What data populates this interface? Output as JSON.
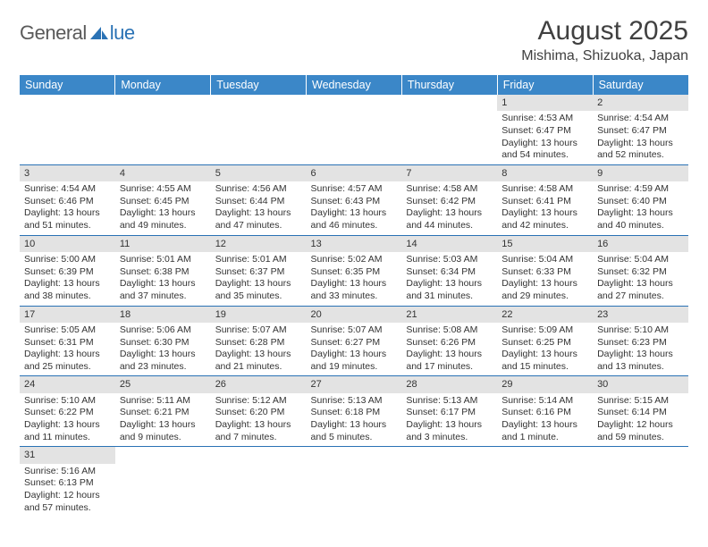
{
  "logo": {
    "text1": "General",
    "text2": "lue",
    "sail_color": "#2a72b5",
    "text1_color": "#5a5a5a"
  },
  "title": "August 2025",
  "subtitle": "Mishima, Shizuoka, Japan",
  "header_bg": "#3b87c8",
  "header_fg": "#ffffff",
  "daynum_bg": "#e3e3e3",
  "divider_color": "#2a72b5",
  "weekdays": [
    "Sunday",
    "Monday",
    "Tuesday",
    "Wednesday",
    "Thursday",
    "Friday",
    "Saturday"
  ],
  "weeks": [
    [
      null,
      null,
      null,
      null,
      null,
      {
        "n": "1",
        "sr": "Sunrise: 4:53 AM",
        "ss": "Sunset: 6:47 PM",
        "dl": "Daylight: 13 hours and 54 minutes."
      },
      {
        "n": "2",
        "sr": "Sunrise: 4:54 AM",
        "ss": "Sunset: 6:47 PM",
        "dl": "Daylight: 13 hours and 52 minutes."
      }
    ],
    [
      {
        "n": "3",
        "sr": "Sunrise: 4:54 AM",
        "ss": "Sunset: 6:46 PM",
        "dl": "Daylight: 13 hours and 51 minutes."
      },
      {
        "n": "4",
        "sr": "Sunrise: 4:55 AM",
        "ss": "Sunset: 6:45 PM",
        "dl": "Daylight: 13 hours and 49 minutes."
      },
      {
        "n": "5",
        "sr": "Sunrise: 4:56 AM",
        "ss": "Sunset: 6:44 PM",
        "dl": "Daylight: 13 hours and 47 minutes."
      },
      {
        "n": "6",
        "sr": "Sunrise: 4:57 AM",
        "ss": "Sunset: 6:43 PM",
        "dl": "Daylight: 13 hours and 46 minutes."
      },
      {
        "n": "7",
        "sr": "Sunrise: 4:58 AM",
        "ss": "Sunset: 6:42 PM",
        "dl": "Daylight: 13 hours and 44 minutes."
      },
      {
        "n": "8",
        "sr": "Sunrise: 4:58 AM",
        "ss": "Sunset: 6:41 PM",
        "dl": "Daylight: 13 hours and 42 minutes."
      },
      {
        "n": "9",
        "sr": "Sunrise: 4:59 AM",
        "ss": "Sunset: 6:40 PM",
        "dl": "Daylight: 13 hours and 40 minutes."
      }
    ],
    [
      {
        "n": "10",
        "sr": "Sunrise: 5:00 AM",
        "ss": "Sunset: 6:39 PM",
        "dl": "Daylight: 13 hours and 38 minutes."
      },
      {
        "n": "11",
        "sr": "Sunrise: 5:01 AM",
        "ss": "Sunset: 6:38 PM",
        "dl": "Daylight: 13 hours and 37 minutes."
      },
      {
        "n": "12",
        "sr": "Sunrise: 5:01 AM",
        "ss": "Sunset: 6:37 PM",
        "dl": "Daylight: 13 hours and 35 minutes."
      },
      {
        "n": "13",
        "sr": "Sunrise: 5:02 AM",
        "ss": "Sunset: 6:35 PM",
        "dl": "Daylight: 13 hours and 33 minutes."
      },
      {
        "n": "14",
        "sr": "Sunrise: 5:03 AM",
        "ss": "Sunset: 6:34 PM",
        "dl": "Daylight: 13 hours and 31 minutes."
      },
      {
        "n": "15",
        "sr": "Sunrise: 5:04 AM",
        "ss": "Sunset: 6:33 PM",
        "dl": "Daylight: 13 hours and 29 minutes."
      },
      {
        "n": "16",
        "sr": "Sunrise: 5:04 AM",
        "ss": "Sunset: 6:32 PM",
        "dl": "Daylight: 13 hours and 27 minutes."
      }
    ],
    [
      {
        "n": "17",
        "sr": "Sunrise: 5:05 AM",
        "ss": "Sunset: 6:31 PM",
        "dl": "Daylight: 13 hours and 25 minutes."
      },
      {
        "n": "18",
        "sr": "Sunrise: 5:06 AM",
        "ss": "Sunset: 6:30 PM",
        "dl": "Daylight: 13 hours and 23 minutes."
      },
      {
        "n": "19",
        "sr": "Sunrise: 5:07 AM",
        "ss": "Sunset: 6:28 PM",
        "dl": "Daylight: 13 hours and 21 minutes."
      },
      {
        "n": "20",
        "sr": "Sunrise: 5:07 AM",
        "ss": "Sunset: 6:27 PM",
        "dl": "Daylight: 13 hours and 19 minutes."
      },
      {
        "n": "21",
        "sr": "Sunrise: 5:08 AM",
        "ss": "Sunset: 6:26 PM",
        "dl": "Daylight: 13 hours and 17 minutes."
      },
      {
        "n": "22",
        "sr": "Sunrise: 5:09 AM",
        "ss": "Sunset: 6:25 PM",
        "dl": "Daylight: 13 hours and 15 minutes."
      },
      {
        "n": "23",
        "sr": "Sunrise: 5:10 AM",
        "ss": "Sunset: 6:23 PM",
        "dl": "Daylight: 13 hours and 13 minutes."
      }
    ],
    [
      {
        "n": "24",
        "sr": "Sunrise: 5:10 AM",
        "ss": "Sunset: 6:22 PM",
        "dl": "Daylight: 13 hours and 11 minutes."
      },
      {
        "n": "25",
        "sr": "Sunrise: 5:11 AM",
        "ss": "Sunset: 6:21 PM",
        "dl": "Daylight: 13 hours and 9 minutes."
      },
      {
        "n": "26",
        "sr": "Sunrise: 5:12 AM",
        "ss": "Sunset: 6:20 PM",
        "dl": "Daylight: 13 hours and 7 minutes."
      },
      {
        "n": "27",
        "sr": "Sunrise: 5:13 AM",
        "ss": "Sunset: 6:18 PM",
        "dl": "Daylight: 13 hours and 5 minutes."
      },
      {
        "n": "28",
        "sr": "Sunrise: 5:13 AM",
        "ss": "Sunset: 6:17 PM",
        "dl": "Daylight: 13 hours and 3 minutes."
      },
      {
        "n": "29",
        "sr": "Sunrise: 5:14 AM",
        "ss": "Sunset: 6:16 PM",
        "dl": "Daylight: 13 hours and 1 minute."
      },
      {
        "n": "30",
        "sr": "Sunrise: 5:15 AM",
        "ss": "Sunset: 6:14 PM",
        "dl": "Daylight: 12 hours and 59 minutes."
      }
    ],
    [
      {
        "n": "31",
        "sr": "Sunrise: 5:16 AM",
        "ss": "Sunset: 6:13 PM",
        "dl": "Daylight: 12 hours and 57 minutes."
      },
      null,
      null,
      null,
      null,
      null,
      null
    ]
  ]
}
